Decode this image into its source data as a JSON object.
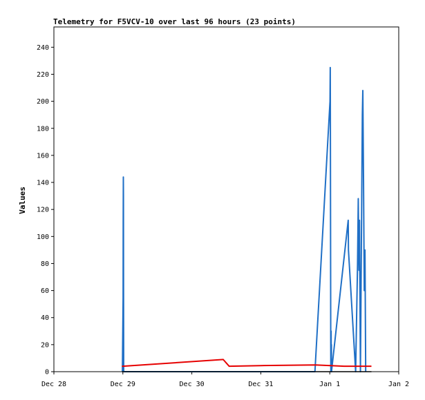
{
  "chart_data": {
    "type": "line",
    "title": "Telemetry for F5VCV-10 over last 96 hours (23 points)",
    "xlabel": "",
    "ylabel": "Values",
    "ylim": [
      0,
      255
    ],
    "yticks": [
      0,
      20,
      40,
      60,
      80,
      100,
      120,
      140,
      160,
      180,
      200,
      220,
      240
    ],
    "xlim": [
      "2023-12-28T00:00",
      "2024-01-02T00:00"
    ],
    "xticks": [
      {
        "t": "2023-12-28T00:00",
        "label": "Dec 28"
      },
      {
        "t": "2023-12-29T00:00",
        "label": "Dec 29"
      },
      {
        "t": "2023-12-30T00:00",
        "label": "Dec 30"
      },
      {
        "t": "2023-12-31T00:00",
        "label": "Dec 31"
      },
      {
        "t": "2024-01-01T00:00",
        "label": "Jan 1"
      },
      {
        "t": "2024-01-02T00:00",
        "label": "Jan 2"
      }
    ],
    "grid": false,
    "series": [
      {
        "color": "#1f6fc6",
        "points": [
          [
            "2023-12-28T23:50",
            0
          ],
          [
            "2023-12-29T00:05",
            55
          ],
          [
            "2023-12-29T00:07",
            110
          ],
          [
            "2023-12-29T00:10",
            144
          ],
          [
            "2023-12-29T00:12",
            130
          ],
          [
            "2023-12-29T00:14",
            60
          ],
          [
            "2023-12-29T00:17",
            0
          ],
          [
            "2023-12-31T18:50",
            0
          ],
          [
            "2024-01-01T00:05",
            200
          ],
          [
            "2024-01-01T00:10",
            225
          ],
          [
            "2024-01-01T00:12",
            200
          ],
          [
            "2024-01-01T00:14",
            160
          ],
          [
            "2024-01-01T00:16",
            115
          ],
          [
            "2024-01-01T00:18",
            70
          ],
          [
            "2024-01-01T00:20",
            25
          ],
          [
            "2024-01-01T00:22",
            0
          ],
          [
            "2024-01-01T00:24",
            30
          ],
          [
            "2024-01-01T00:26",
            15
          ],
          [
            "2024-01-01T00:28",
            30
          ],
          [
            "2024-01-01T00:30",
            12
          ],
          [
            "2024-01-01T00:32",
            0
          ],
          [
            "2024-01-01T00:34",
            20
          ],
          [
            "2024-01-01T00:36",
            0
          ],
          [
            "2024-01-01T06:25",
            112
          ],
          [
            "2024-01-01T06:30",
            90
          ],
          [
            "2024-01-01T09:00",
            0
          ],
          [
            "2024-01-01T09:40",
            80
          ],
          [
            "2024-01-01T09:55",
            128
          ],
          [
            "2024-01-01T10:10",
            75
          ],
          [
            "2024-01-01T10:20",
            112
          ],
          [
            "2024-01-01T10:40",
            0
          ],
          [
            "2024-01-01T11:20",
            190
          ],
          [
            "2024-01-01T11:30",
            208
          ],
          [
            "2024-01-01T11:45",
            140
          ],
          [
            "2024-01-01T12:00",
            60
          ],
          [
            "2024-01-01T12:15",
            90
          ],
          [
            "2024-01-01T12:30",
            0
          ]
        ]
      },
      {
        "color": "#e60000",
        "points": [
          [
            "2023-12-28T23:40",
            4
          ],
          [
            "2023-12-29T00:00",
            4
          ],
          [
            "2023-12-30T10:55",
            9
          ],
          [
            "2023-12-30T13:00",
            4
          ],
          [
            "2023-12-31T00:00",
            4.5
          ],
          [
            "2023-12-31T19:00",
            5
          ],
          [
            "2024-01-01T05:00",
            4
          ],
          [
            "2024-01-01T14:30",
            4
          ]
        ]
      },
      {
        "color": "#000000",
        "points": [
          [
            "2023-12-28T23:40",
            0
          ],
          [
            "2024-01-01T14:30",
            0
          ]
        ]
      }
    ]
  }
}
